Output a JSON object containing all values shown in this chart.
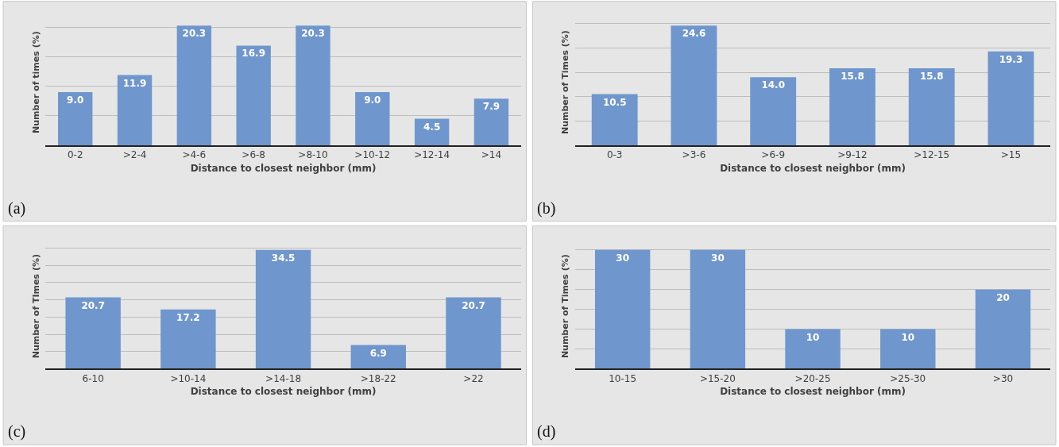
{
  "chart_data": [
    {
      "type": "bar",
      "ylabel": "Number of times (%)",
      "xlabel": "Distance to closest neighbor (mm)",
      "annotations": [
        "(a)"
      ],
      "categories": [
        "0-2",
        ">2-4",
        ">4-6",
        ">6-8",
        ">8-10",
        ">10-12",
        ">12-14",
        ">14"
      ],
      "values": [
        9.0,
        11.9,
        20.3,
        16.9,
        20.3,
        9.0,
        4.5,
        7.9
      ],
      "value_labels": [
        "9.0",
        "11.9",
        "20.3",
        "16.9",
        "20.3",
        "9.0",
        "4.5",
        "7.9"
      ],
      "color": "#6f97cd",
      "grid": "y"
    },
    {
      "type": "bar",
      "ylabel": "Number of Times (%)",
      "xlabel": "Distance to closest neighbor (mm)",
      "annotations": [
        "(b)"
      ],
      "categories": [
        "0-3",
        ">3-6",
        ">6-9",
        ">9-12",
        ">12-15",
        ">15"
      ],
      "values": [
        10.5,
        24.6,
        14.0,
        15.8,
        15.8,
        19.3
      ],
      "value_labels": [
        "10.5",
        "24.6",
        "14.0",
        "15.8",
        "15.8",
        "19.3"
      ],
      "color": "#6f97cd",
      "grid": "y"
    },
    {
      "type": "bar",
      "ylabel": "Number of TImes (%)",
      "xlabel": "Distance to closest neighbor (mm)",
      "annotations": [
        "(c)"
      ],
      "categories": [
        "6-10",
        ">10-14",
        ">14-18",
        ">18-22",
        ">22"
      ],
      "values": [
        20.7,
        17.2,
        34.5,
        6.9,
        20.7
      ],
      "value_labels": [
        "20.7",
        "17.2",
        "34.5",
        "6.9",
        "20.7"
      ],
      "color": "#6f97cd",
      "grid": "y"
    },
    {
      "type": "bar",
      "ylabel": "Number of Times (%)",
      "xlabel": "Distance to closest neighbor (mm)",
      "annotations": [
        "(d)"
      ],
      "categories": [
        "10-15",
        ">15-20",
        ">20-25",
        ">25-30",
        ">30"
      ],
      "values": [
        30,
        30,
        10,
        10,
        20
      ],
      "value_labels": [
        "30",
        "30",
        "10",
        "10",
        "20"
      ],
      "color": "#6f97cd",
      "grid": "y"
    }
  ]
}
